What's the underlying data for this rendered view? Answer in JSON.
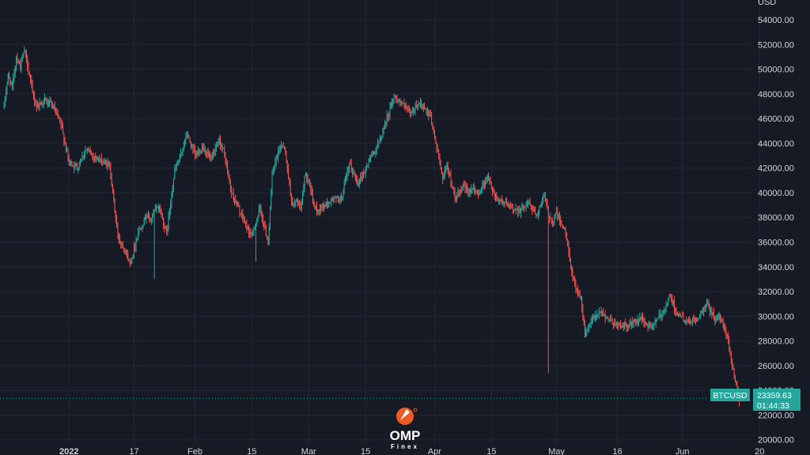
{
  "chart_data": {
    "type": "candlestick",
    "symbol": "BTCUSD",
    "last_price": "23359.63",
    "countdown": "01:44:33",
    "currency_label": "USD",
    "ylim": [
      19600,
      55600
    ],
    "y_ticks": [
      20000,
      22000,
      24000,
      26000,
      28000,
      30000,
      32000,
      34000,
      36000,
      38000,
      40000,
      42000,
      44000,
      46000,
      48000,
      50000,
      52000,
      54000
    ],
    "y_tick_labels": [
      "20000.00",
      "22000.00",
      "24000.00",
      "26000.00",
      "28000.00",
      "30000.00",
      "32000.00",
      "34000.00",
      "36000.00",
      "38000.00",
      "40000.00",
      "42000.00",
      "44000.00",
      "46000.00",
      "48000.00",
      "50000.00",
      "52000.00",
      "54000.00"
    ],
    "x_range_days": [
      -17,
      168
    ],
    "x_ticks": [
      {
        "label": "2022",
        "day": 0,
        "bold": true
      },
      {
        "label": "17",
        "day": 16
      },
      {
        "label": "Feb",
        "day": 31
      },
      {
        "label": "15",
        "day": 45
      },
      {
        "label": "Mar",
        "day": 59
      },
      {
        "label": "15",
        "day": 73
      },
      {
        "label": "Apr",
        "day": 90
      },
      {
        "label": "15",
        "day": 104
      },
      {
        "label": "May",
        "day": 120
      },
      {
        "label": "16",
        "day": 135
      },
      {
        "label": "Jun",
        "day": 151
      },
      {
        "label": "20",
        "day": 170
      }
    ],
    "path_days": [
      -16,
      -15,
      -14,
      -13,
      -12,
      -11,
      -10,
      -9,
      -8,
      -6,
      -4,
      -2,
      0,
      2,
      4,
      6,
      8,
      10,
      12,
      14,
      15,
      17,
      18,
      19,
      20,
      22,
      24,
      26,
      27,
      29,
      31,
      33,
      35,
      37,
      38,
      40,
      42,
      44,
      45,
      47,
      49,
      50,
      52,
      53,
      55,
      56,
      57,
      58,
      59,
      60,
      61,
      63,
      65,
      67,
      69,
      71,
      73,
      74,
      76,
      78,
      80,
      82,
      84,
      86,
      88,
      89,
      90,
      92,
      93,
      95,
      97,
      99,
      101,
      103,
      105,
      107,
      109,
      111,
      113,
      115,
      117,
      118,
      119,
      120,
      121,
      122,
      123,
      124,
      126,
      127,
      129,
      131,
      133,
      135,
      137,
      139,
      141,
      143,
      145,
      146,
      148,
      150,
      151,
      152,
      153,
      155,
      157,
      159,
      160,
      161,
      162,
      163,
      164,
      165
    ],
    "path_values": [
      47000,
      49500,
      48500,
      51000,
      50200,
      51500,
      50000,
      48000,
      47000,
      47500,
      47000,
      45500,
      42500,
      42000,
      43500,
      43000,
      42500,
      42200,
      36500,
      35200,
      34200,
      36800,
      37400,
      38200,
      37800,
      39000,
      36700,
      41800,
      42500,
      44800,
      43000,
      43700,
      42600,
      44200,
      43400,
      40000,
      38500,
      37000,
      36500,
      38700,
      36000,
      41500,
      43800,
      43800,
      38800,
      39400,
      38500,
      41400,
      41200,
      39200,
      38500,
      39000,
      39500,
      39500,
      42300,
      40800,
      41800,
      42800,
      43800,
      45800,
      47800,
      47200,
      46300,
      47300,
      46500,
      46000,
      44500,
      41200,
      42300,
      39500,
      40400,
      40200,
      40000,
      41300,
      39600,
      39200,
      38700,
      38600,
      39200,
      38200,
      39700,
      38300,
      37600,
      38400,
      37500,
      37100,
      35200,
      33000,
      31500,
      28500,
      29800,
      30300,
      29700,
      29300,
      29200,
      29500,
      29800,
      29000,
      29800,
      30200,
      31600,
      30000,
      29900,
      29400,
      29600,
      29800,
      31000,
      29800,
      30000,
      29400,
      28500,
      26500,
      24800,
      23359
    ],
    "spikes": [
      {
        "day": 21,
        "low": 33000
      },
      {
        "day": 46,
        "low": 34400
      },
      {
        "day": 118,
        "low": 25400
      },
      {
        "day": 165,
        "low": 22700
      }
    ],
    "colors": {
      "up": "#26a69a",
      "down": "#ef5350",
      "price_tag": "#26a69a",
      "grid": "#232734",
      "axis_text": "#d1d4dc",
      "background": "#161a25"
    }
  },
  "watermark": {
    "logo_text": "OMP",
    "logo_sub": "Finex"
  }
}
